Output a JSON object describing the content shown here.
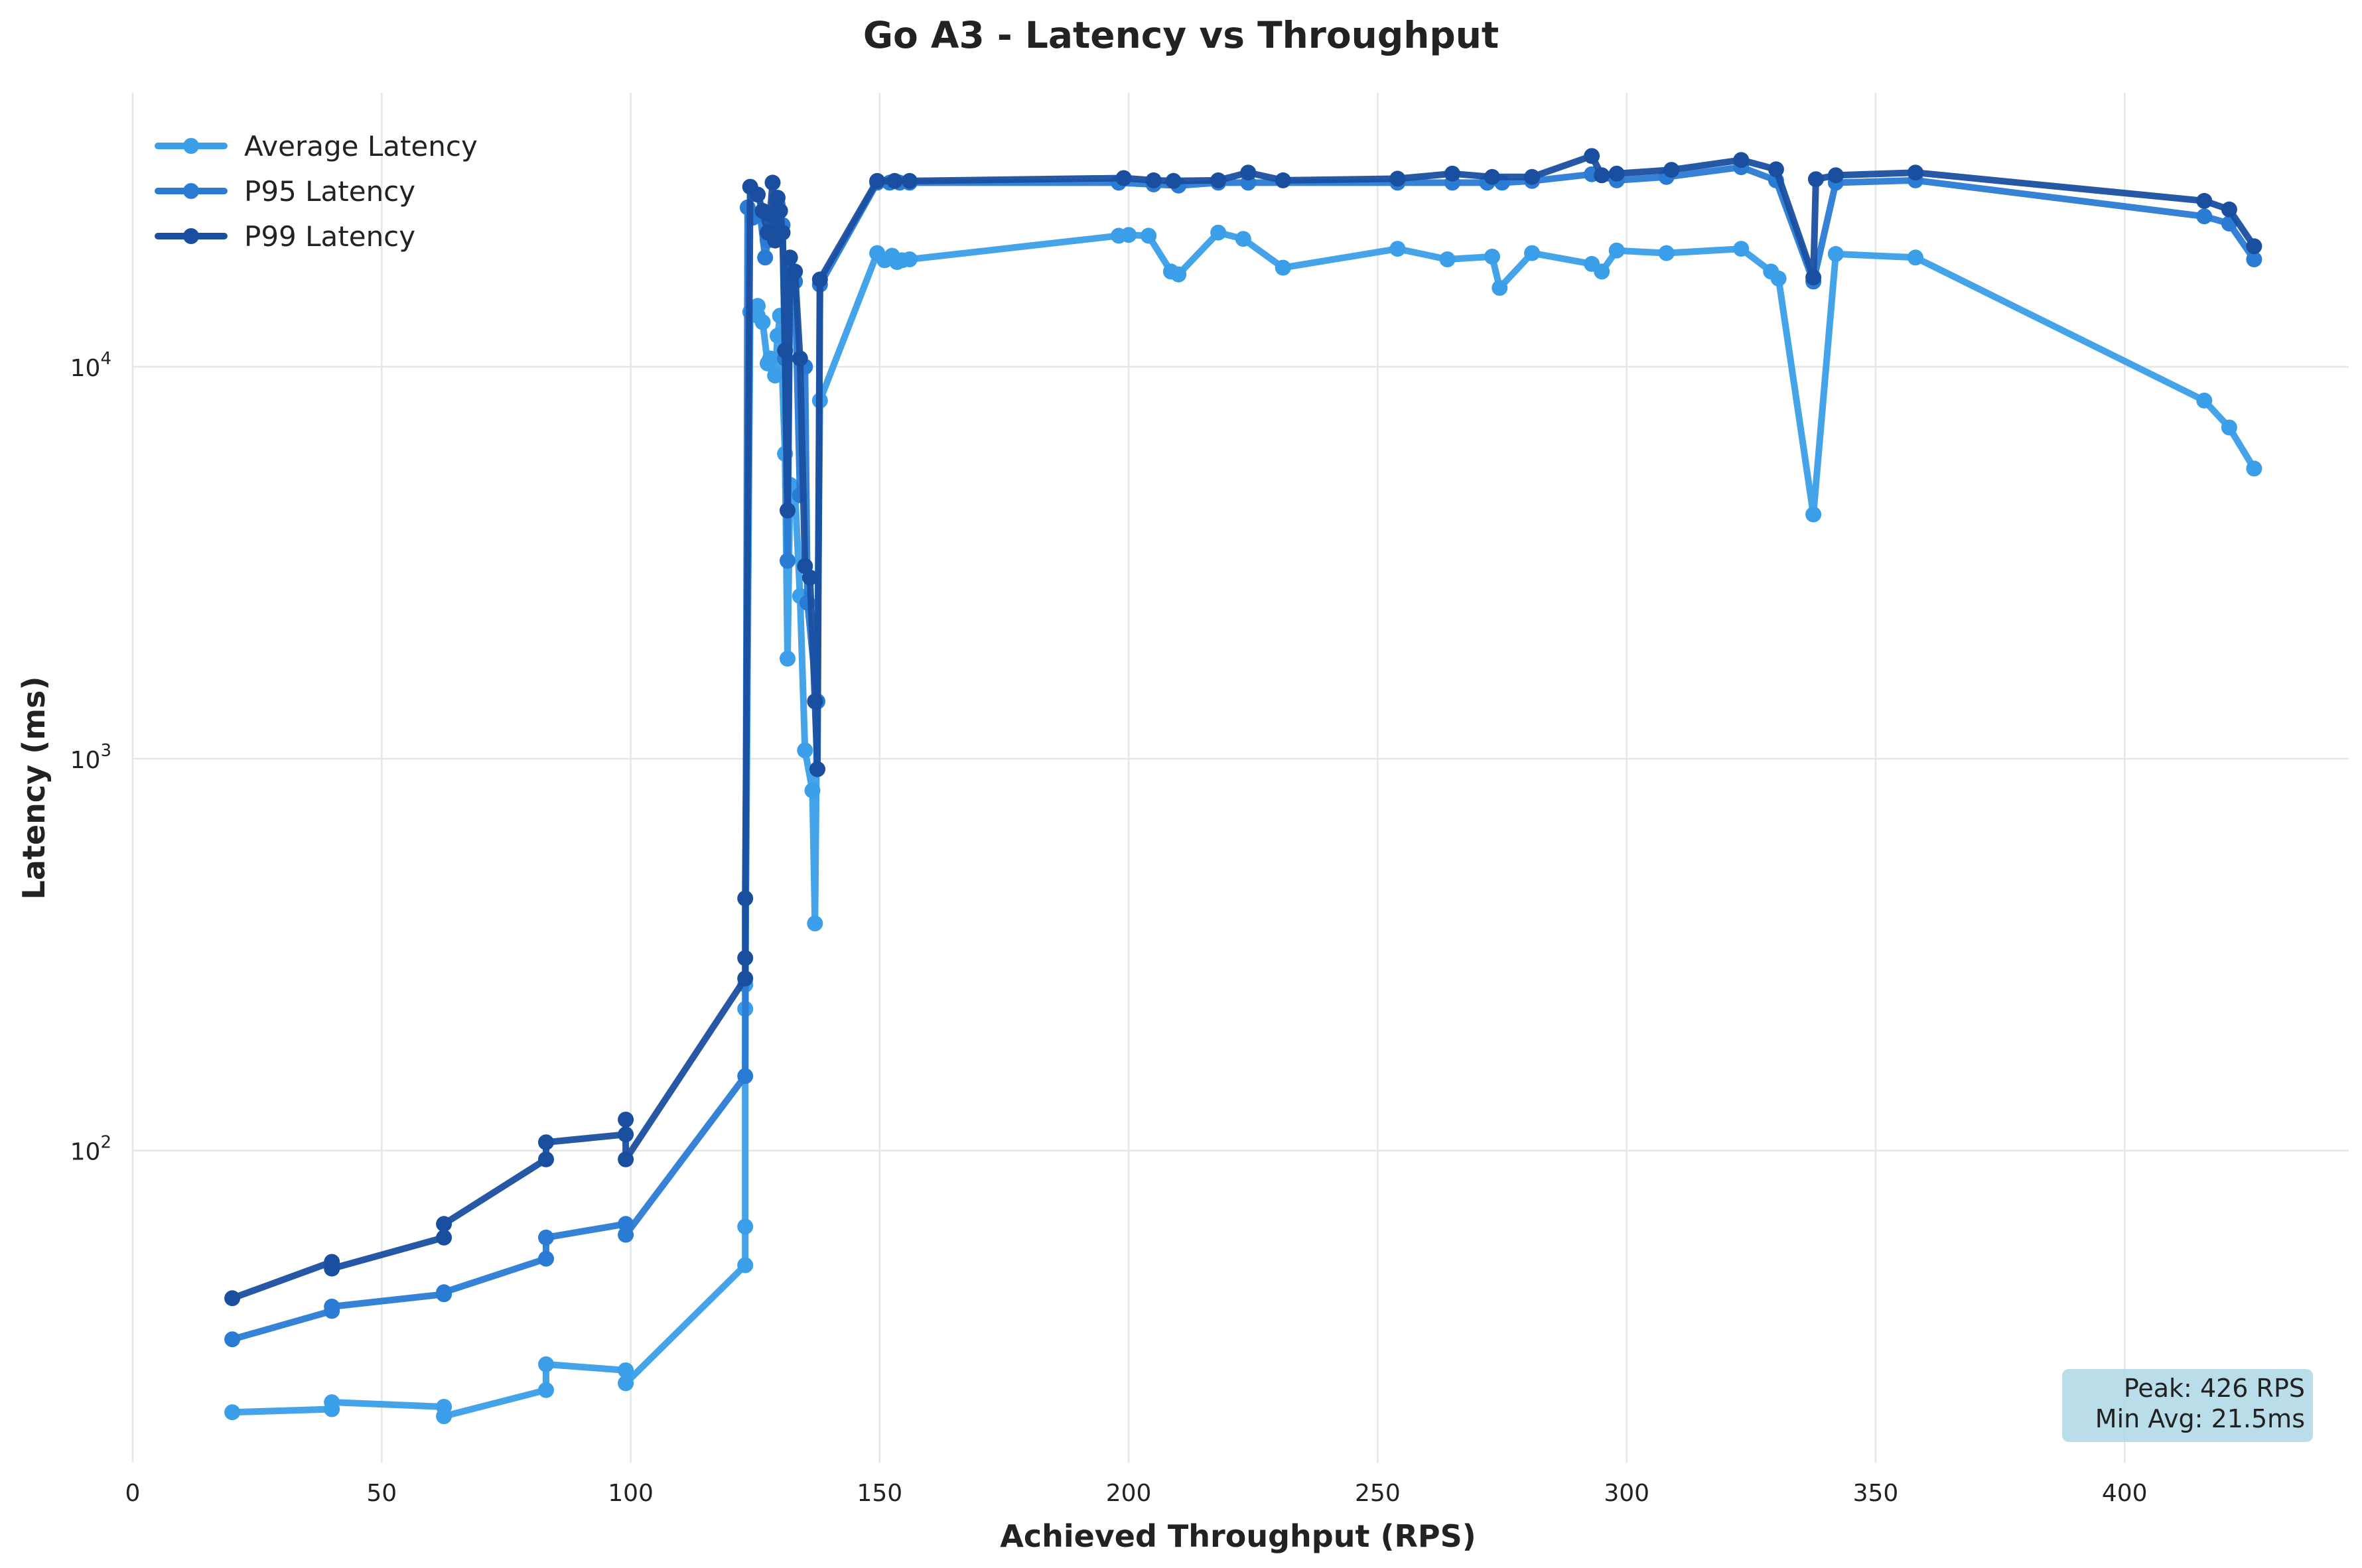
{
  "chart_data": {
    "type": "line",
    "title": "Go A3 - Latency vs Throughput",
    "xlabel": "Achieved Throughput (RPS)",
    "ylabel": "Latency (ms)",
    "xlim": [
      0,
      445
    ],
    "ylim": [
      16,
      50000
    ],
    "yscale": "log",
    "xticks": [
      "0",
      "50",
      "100",
      "150",
      "200",
      "250",
      "300",
      "350",
      "400"
    ],
    "yticks": [
      {
        "base": "10",
        "exp": "2",
        "value": 100
      },
      {
        "base": "10",
        "exp": "3",
        "value": 1000
      },
      {
        "base": "10",
        "exp": "4",
        "value": 10000
      }
    ],
    "grid": true,
    "legend_position": "top-left",
    "annotation": {
      "lines": [
        "Peak: 426 RPS",
        "Min Avg: 21.5ms"
      ],
      "position": "bottom-right",
      "background": "#add8e6"
    },
    "series": [
      {
        "name": "Average Latency",
        "color": "#3a9ee8",
        "points": [
          [
            20,
            21.5
          ],
          [
            40,
            21.9
          ],
          [
            40,
            22.8
          ],
          [
            62.5,
            22.2
          ],
          [
            62.5,
            21
          ],
          [
            83,
            24.5
          ],
          [
            83,
            28.5
          ],
          [
            99,
            27.5
          ],
          [
            99,
            25.5
          ],
          [
            123,
            51
          ],
          [
            123,
            64
          ],
          [
            123,
            230
          ],
          [
            123,
            265
          ],
          [
            124,
            13800
          ],
          [
            125.5,
            13500
          ],
          [
            125.5,
            14300
          ],
          [
            126.5,
            13000
          ],
          [
            127.5,
            10200
          ],
          [
            128,
            10500
          ],
          [
            129,
            9500
          ],
          [
            129.5,
            12000
          ],
          [
            130,
            13500
          ],
          [
            131,
            6000
          ],
          [
            131.5,
            1800
          ],
          [
            132,
            5000
          ],
          [
            133,
            4800
          ],
          [
            134,
            2600
          ],
          [
            135,
            1050
          ],
          [
            136.5,
            830
          ],
          [
            137,
            380
          ],
          [
            138,
            8200
          ],
          [
            149.5,
            19500
          ],
          [
            151,
            18700
          ],
          [
            152.5,
            19200
          ],
          [
            153.5,
            18500
          ],
          [
            154.5,
            18700
          ],
          [
            156,
            18800
          ],
          [
            198,
            21600
          ],
          [
            200,
            21700
          ],
          [
            204,
            21600
          ],
          [
            208.5,
            17500
          ],
          [
            210,
            17200
          ],
          [
            218,
            22000
          ],
          [
            223,
            21200
          ],
          [
            231,
            17900
          ],
          [
            254,
            20000
          ],
          [
            264,
            18800
          ],
          [
            273,
            19100
          ],
          [
            274.5,
            15900
          ],
          [
            281,
            19500
          ],
          [
            293,
            18300
          ],
          [
            295,
            17500
          ],
          [
            298,
            19800
          ],
          [
            308,
            19500
          ],
          [
            323,
            20000
          ],
          [
            329,
            17500
          ],
          [
            330.5,
            16800
          ],
          [
            337.5,
            4200
          ],
          [
            342,
            19400
          ],
          [
            358,
            19000
          ],
          [
            416,
            8200
          ],
          [
            421,
            7000
          ],
          [
            426,
            5500
          ]
        ]
      },
      {
        "name": "P95 Latency",
        "color": "#2a7bd4",
        "points": [
          [
            20,
            33
          ],
          [
            40,
            39
          ],
          [
            40,
            40
          ],
          [
            62.5,
            43
          ],
          [
            62.5,
            43.5
          ],
          [
            83,
            53
          ],
          [
            83,
            60
          ],
          [
            99,
            65
          ],
          [
            99,
            61
          ],
          [
            123,
            155
          ],
          [
            123.5,
            25500
          ],
          [
            124.5,
            24000
          ],
          [
            126,
            24500
          ],
          [
            127,
            19000
          ],
          [
            127.5,
            21000
          ],
          [
            128.5,
            22000
          ],
          [
            129,
            24000
          ],
          [
            129.5,
            26000
          ],
          [
            130.5,
            23000
          ],
          [
            131,
            10500
          ],
          [
            131.5,
            3200
          ],
          [
            132,
            17000
          ],
          [
            133,
            16500
          ],
          [
            134,
            4700
          ],
          [
            135,
            10000
          ],
          [
            135.5,
            2500
          ],
          [
            137.5,
            1400
          ],
          [
            138,
            16200
          ],
          [
            149.5,
            29500
          ],
          [
            152,
            29500
          ],
          [
            154,
            29500
          ],
          [
            156,
            29500
          ],
          [
            198,
            29500
          ],
          [
            205,
            29200
          ],
          [
            210,
            29000
          ],
          [
            218,
            29500
          ],
          [
            224,
            29500
          ],
          [
            254,
            29500
          ],
          [
            265,
            29500
          ],
          [
            272,
            29500
          ],
          [
            275,
            29500
          ],
          [
            281,
            29800
          ],
          [
            293,
            31000
          ],
          [
            298,
            29900
          ],
          [
            308,
            30500
          ],
          [
            323,
            32300
          ],
          [
            330,
            29900
          ],
          [
            337.5,
            16500
          ],
          [
            342,
            29500
          ],
          [
            358,
            29900
          ],
          [
            416,
            24200
          ],
          [
            421,
            23200
          ],
          [
            426,
            18800
          ]
        ]
      },
      {
        "name": "P99 Latency",
        "color": "#1a4fa0",
        "points": [
          [
            20,
            42
          ],
          [
            40,
            52
          ],
          [
            40,
            50
          ],
          [
            62.5,
            60
          ],
          [
            62.5,
            65
          ],
          [
            83,
            95
          ],
          [
            83,
            105
          ],
          [
            99,
            110
          ],
          [
            99,
            120
          ],
          [
            99,
            95
          ],
          [
            123,
            275
          ],
          [
            123,
            310
          ],
          [
            123,
            440
          ],
          [
            124,
            28800
          ],
          [
            125.5,
            27500
          ],
          [
            126.5,
            25000
          ],
          [
            127.5,
            22000
          ],
          [
            128,
            24500
          ],
          [
            128.5,
            29500
          ],
          [
            129,
            21000
          ],
          [
            129.5,
            27000
          ],
          [
            130,
            25000
          ],
          [
            130.5,
            22000
          ],
          [
            131,
            11000
          ],
          [
            131.5,
            4300
          ],
          [
            132,
            19000
          ],
          [
            133,
            17500
          ],
          [
            134,
            10500
          ],
          [
            135,
            3100
          ],
          [
            136,
            2900
          ],
          [
            137,
            1400
          ],
          [
            137.5,
            940
          ],
          [
            138,
            16700
          ],
          [
            149.5,
            29800
          ],
          [
            153,
            29800
          ],
          [
            156,
            29800
          ],
          [
            199,
            30300
          ],
          [
            205,
            29900
          ],
          [
            209,
            29800
          ],
          [
            218,
            29900
          ],
          [
            224,
            31300
          ],
          [
            231,
            29900
          ],
          [
            254,
            30200
          ],
          [
            265,
            31100
          ],
          [
            273,
            30500
          ],
          [
            281,
            30500
          ],
          [
            293,
            34500
          ],
          [
            295,
            30800
          ],
          [
            298,
            31100
          ],
          [
            309,
            31800
          ],
          [
            323,
            33700
          ],
          [
            330,
            31900
          ],
          [
            337.5,
            16900
          ],
          [
            338,
            30100
          ],
          [
            342,
            30800
          ],
          [
            358,
            31300
          ],
          [
            416,
            26500
          ],
          [
            421,
            25200
          ],
          [
            426,
            20300
          ]
        ]
      }
    ]
  }
}
